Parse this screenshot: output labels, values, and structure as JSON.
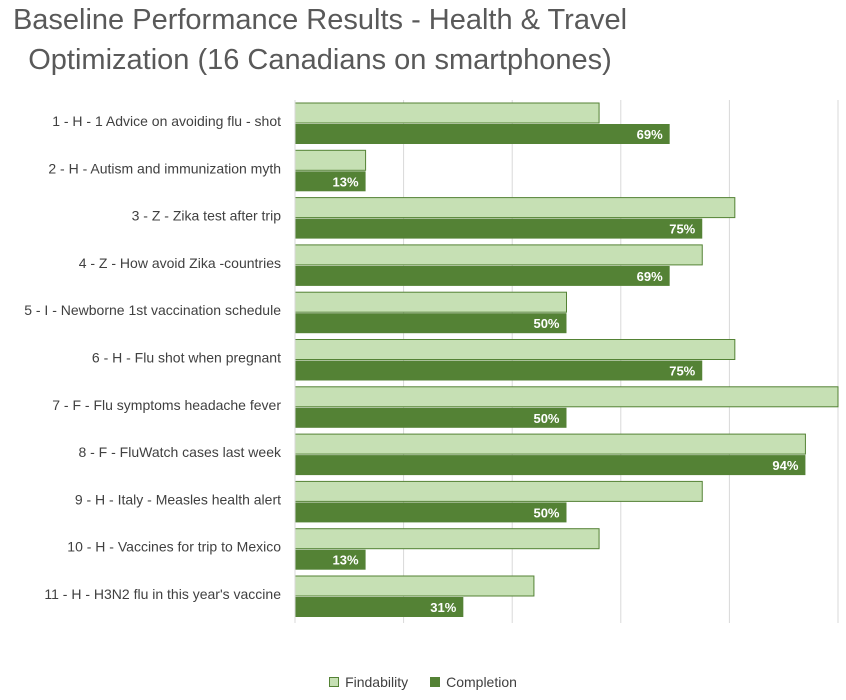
{
  "title_lines": [
    "Baseline Performance Results - Health & Travel",
    "Optimization (16 Canadians on smartphones)"
  ],
  "colors": {
    "findability_fill": "#c6e0b4",
    "findability_border": "#548235",
    "completion_fill": "#548235",
    "gridline": "#d9d9d9"
  },
  "chart_data": {
    "type": "bar",
    "orientation": "horizontal",
    "title": "Baseline Performance Results - Health & Travel Optimization (16 Canadians on smartphones)",
    "categories": [
      "1 - H - 1 Advice on avoiding flu - shot",
      "2 - H - Autism and immunization myth",
      "3 - Z - Zika test after trip",
      "4 - Z - How avoid Zika -countries",
      "5 - I - Newborne 1st vaccination schedule",
      "6 - H - Flu shot when pregnant",
      "7 - F - Flu symptoms headache fever",
      "8 - F - FluWatch cases last week",
      "9 - H - Italy - Measles health alert",
      "10 - H - Vaccines for trip to Mexico",
      "11 - H - H3N2 flu in this year's vaccine"
    ],
    "series": [
      {
        "name": "Findability",
        "values": [
          56,
          13,
          81,
          75,
          50,
          81,
          100,
          94,
          75,
          56,
          44
        ]
      },
      {
        "name": "Completion",
        "values": [
          69,
          13,
          75,
          69,
          50,
          75,
          50,
          94,
          50,
          13,
          31
        ],
        "data_labels": [
          "69%",
          "13%",
          "75%",
          "69%",
          "50%",
          "75%",
          "50%",
          "94%",
          "50%",
          "13%",
          "31%"
        ]
      }
    ],
    "xlim": [
      0,
      100
    ],
    "grid": true,
    "legend_position": "bottom"
  }
}
